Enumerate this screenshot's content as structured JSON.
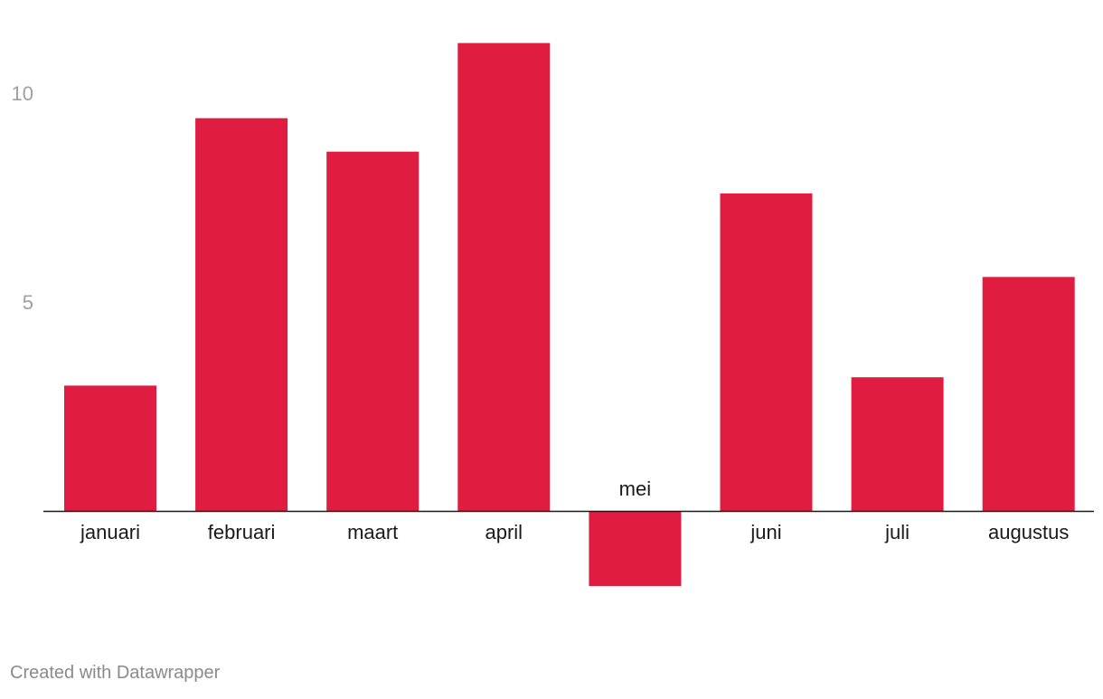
{
  "chart_data": {
    "type": "bar",
    "categories": [
      "januari",
      "februari",
      "maart",
      "april",
      "mei",
      "juni",
      "juli",
      "augustus"
    ],
    "values": [
      3.0,
      9.4,
      8.6,
      11.2,
      -1.8,
      7.6,
      3.2,
      5.6
    ],
    "title": "",
    "xlabel": "",
    "ylabel": "",
    "ylim": [
      -1.8,
      11.2
    ],
    "yticks": [
      5,
      10
    ],
    "y_tick_labels": [
      "5",
      "10"
    ],
    "bar_color": "#e01c41",
    "axis_color": "#1a1a1a",
    "tick_label_color": "#a0a0a0",
    "grid": false,
    "legend": "none"
  },
  "footer": {
    "credit": "Created with Datawrapper"
  }
}
